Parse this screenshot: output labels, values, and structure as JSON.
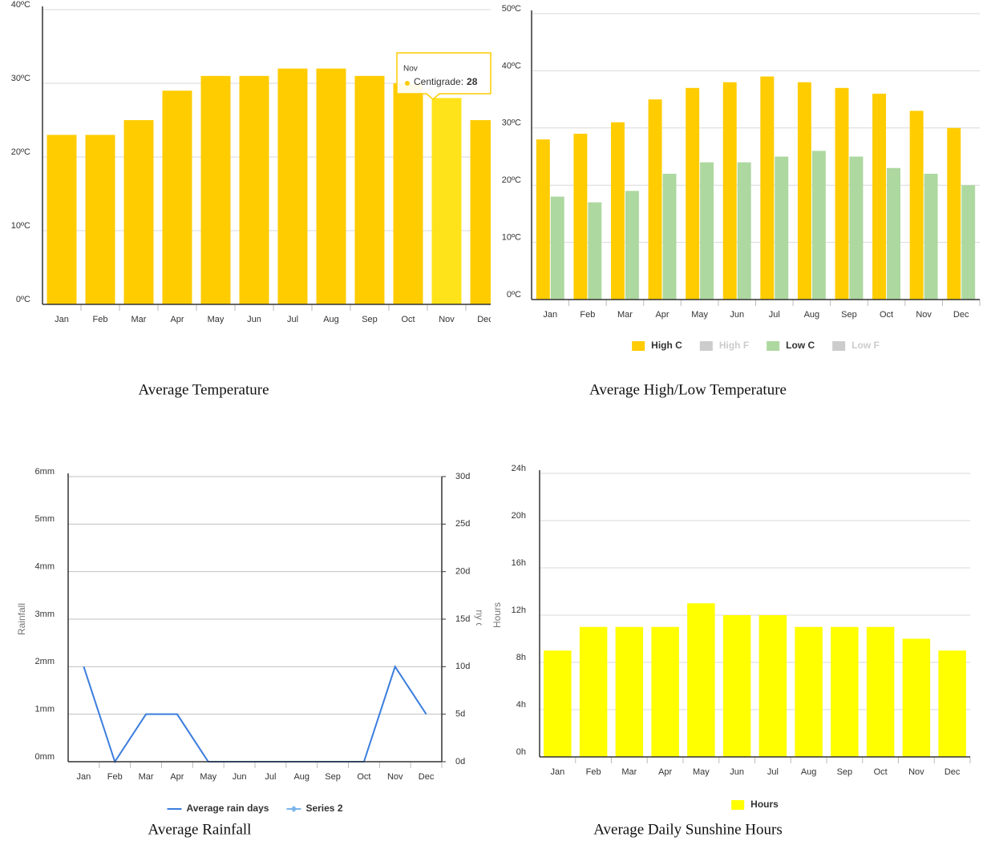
{
  "chart_data": [
    {
      "type": "bar",
      "title": "Average Temperature",
      "categories": [
        "Jan",
        "Feb",
        "Mar",
        "Apr",
        "May",
        "Jun",
        "Jul",
        "Aug",
        "Sep",
        "Oct",
        "Nov",
        "Dec"
      ],
      "values": [
        23,
        23,
        25,
        29,
        31,
        31,
        32,
        32,
        31,
        30,
        28,
        25
      ],
      "color": "#ffcc00",
      "ylim": [
        0,
        40
      ],
      "yticks": [
        {
          "value": 0,
          "label": "0ºC"
        },
        {
          "value": 10,
          "label": "10ºC"
        },
        {
          "value": 20,
          "label": "20ºC"
        },
        {
          "value": 30,
          "label": "30ºC"
        },
        {
          "value": 40,
          "label": "40ºC"
        }
      ],
      "grid": true,
      "tooltip_label": "Centigrade:"
    },
    {
      "type": "bar",
      "title": "Average High/Low Temperature",
      "categories": [
        "Jan",
        "Feb",
        "Mar",
        "Apr",
        "May",
        "Jun",
        "Jul",
        "Aug",
        "Sep",
        "Oct",
        "Nov",
        "Dec"
      ],
      "series": [
        {
          "name": "High C",
          "color": "#ffcc00",
          "values": [
            28,
            29,
            31,
            35,
            37,
            38,
            39,
            38,
            37,
            36,
            33,
            30
          ]
        },
        {
          "name": "High F",
          "color": "#cccccc",
          "visible": false,
          "values": [
            null,
            null,
            null,
            null,
            null,
            null,
            null,
            null,
            null,
            null,
            null,
            null
          ]
        },
        {
          "name": "Low C",
          "color": "#add8a0",
          "values": [
            18,
            17,
            19,
            22,
            24,
            24,
            25,
            26,
            25,
            23,
            22,
            20
          ]
        },
        {
          "name": "Low F",
          "color": "#cccccc",
          "visible": false,
          "values": [
            null,
            null,
            null,
            null,
            null,
            null,
            null,
            null,
            null,
            null,
            null,
            null
          ]
        }
      ],
      "ylim": [
        0,
        50
      ],
      "yticks": [
        {
          "value": 0,
          "label": "0ºC"
        },
        {
          "value": 10,
          "label": "10ºC"
        },
        {
          "value": 20,
          "label": "20ºC"
        },
        {
          "value": 30,
          "label": "30ºC"
        },
        {
          "value": 40,
          "label": "40ºC"
        },
        {
          "value": 50,
          "label": "50ºC"
        }
      ],
      "grid": true,
      "legend": "bottom"
    },
    {
      "type": "line",
      "title": "Average Rainfall",
      "categories": [
        "Jan",
        "Feb",
        "Mar",
        "Apr",
        "May",
        "Jun",
        "Jul",
        "Aug",
        "Sep",
        "Oct",
        "Nov",
        "Dec"
      ],
      "series": [
        {
          "name": "Average rain days",
          "color": "#3b7ddd",
          "values": [
            2,
            0,
            1,
            1,
            0,
            0,
            0,
            0,
            0,
            0,
            2,
            1
          ]
        },
        {
          "name": "Series 2",
          "color": "#7cb5ec",
          "marker": "diamond",
          "axis": "y2",
          "values": [
            null,
            null,
            null,
            null,
            null,
            null,
            null,
            null,
            null,
            null,
            null,
            null
          ]
        }
      ],
      "ylabel": "Rainfall",
      "y2label": "Rainy days",
      "ylim": [
        0,
        6
      ],
      "yticks": [
        {
          "value": 0,
          "label": "0mm"
        },
        {
          "value": 1,
          "label": "1mm"
        },
        {
          "value": 2,
          "label": "2mm"
        },
        {
          "value": 3,
          "label": "3mm"
        },
        {
          "value": 4,
          "label": "4mm"
        },
        {
          "value": 5,
          "label": "5mm"
        },
        {
          "value": 6,
          "label": "6mm"
        }
      ],
      "y2lim": [
        0,
        30
      ],
      "y2ticks": [
        {
          "value": 0,
          "label": "0d"
        },
        {
          "value": 5,
          "label": "5d"
        },
        {
          "value": 10,
          "label": "10d"
        },
        {
          "value": 15,
          "label": "15d"
        },
        {
          "value": 20,
          "label": "20d"
        },
        {
          "value": 25,
          "label": "25d"
        },
        {
          "value": 30,
          "label": "30d"
        }
      ],
      "grid": true,
      "legend": "bottom"
    },
    {
      "type": "bar",
      "title": "Average Daily Sunshine Hours",
      "categories": [
        "Jan",
        "Feb",
        "Mar",
        "Apr",
        "May",
        "Jun",
        "Jul",
        "Aug",
        "Sep",
        "Oct",
        "Nov",
        "Dec"
      ],
      "series": [
        {
          "name": "Hours",
          "color": "#ffff00",
          "values": [
            9,
            11,
            11,
            11,
            13,
            12,
            12,
            11,
            11,
            11,
            10,
            9
          ]
        }
      ],
      "ylabel": "Hours",
      "ylim": [
        0,
        24
      ],
      "yticks": [
        {
          "value": 0,
          "label": "0h"
        },
        {
          "value": 4,
          "label": "4h"
        },
        {
          "value": 8,
          "label": "8h"
        },
        {
          "value": 12,
          "label": "12h"
        },
        {
          "value": 16,
          "label": "16h"
        },
        {
          "value": 20,
          "label": "20h"
        },
        {
          "value": 24,
          "label": "24h"
        }
      ],
      "grid": true,
      "legend": "bottom"
    }
  ]
}
